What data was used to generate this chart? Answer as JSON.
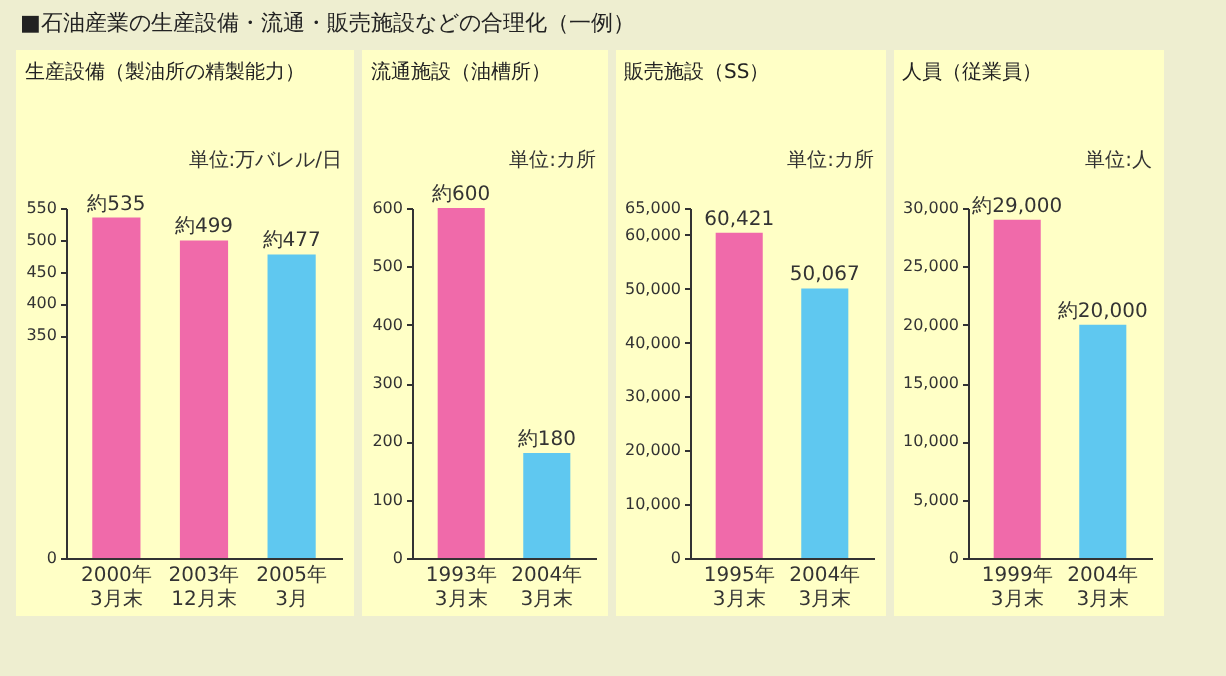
{
  "chart_data": [
    {
      "type": "other",
      "title": "■石油産業の生産設備・流通・販売施設などの合理化（一例）"
    },
    {
      "type": "bar",
      "title": "生産設備（製油所の精製能力）",
      "annotations": [
        "単位:万バレル/日"
      ],
      "categories": [
        "2000年3月末",
        "2003年12月末",
        "2005年3月"
      ],
      "values": [
        535,
        499,
        477
      ],
      "colors": [
        "#f06aaa",
        "#f06aaa",
        "#5fc8f0"
      ],
      "value_labels": [
        "約535",
        "約499",
        "約477"
      ],
      "ylim": [
        0,
        550
      ],
      "yticks": [
        0,
        350,
        400,
        450,
        500,
        550
      ]
    },
    {
      "type": "bar",
      "title": "流通施設（油槽所）",
      "annotations": [
        "単位:カ所"
      ],
      "categories": [
        "1993年3月末",
        "2004年3月末"
      ],
      "values": [
        600,
        180
      ],
      "colors": [
        "#f06aaa",
        "#5fc8f0"
      ],
      "value_labels": [
        "約600",
        "約180"
      ],
      "ylim": [
        0,
        600
      ],
      "yticks": [
        0,
        100,
        200,
        300,
        400,
        500,
        600
      ]
    },
    {
      "type": "bar",
      "title": "販売施設（SS）",
      "annotations": [
        "単位:カ所"
      ],
      "categories": [
        "1995年3月末",
        "2004年3月末"
      ],
      "values": [
        60421,
        50067
      ],
      "colors": [
        "#f06aaa",
        "#5fc8f0"
      ],
      "value_labels": [
        "60,421",
        "50,067"
      ],
      "ylim": [
        0,
        65000
      ],
      "yticks": [
        0,
        {
          "value": 10000,
          "label": "10,000"
        },
        {
          "value": 20000,
          "label": "20,000"
        },
        {
          "value": 30000,
          "label": "30,000"
        },
        {
          "value": 40000,
          "label": "40,000"
        },
        {
          "value": 50000,
          "label": "50,000"
        },
        {
          "value": 60000,
          "label": "60,000"
        },
        {
          "value": 65000,
          "label": "65,000"
        }
      ]
    },
    {
      "type": "bar",
      "title": "人員（従業員）",
      "annotations": [
        "単位:人"
      ],
      "categories": [
        "1999年3月末",
        "2004年3月末"
      ],
      "values": [
        29000,
        20000
      ],
      "colors": [
        "#f06aaa",
        "#5fc8f0"
      ],
      "value_labels": [
        "約29,000",
        "約20,000"
      ],
      "ylim": [
        0,
        30000
      ],
      "yticks": [
        0,
        {
          "value": 5000,
          "label": "5,000"
        },
        {
          "value": 10000,
          "label": "10,000"
        },
        {
          "value": 15000,
          "label": "15,000"
        },
        {
          "value": 20000,
          "label": "20,000"
        },
        {
          "value": 25000,
          "label": "25,000"
        },
        {
          "value": 30000,
          "label": "30,000"
        }
      ]
    }
  ]
}
